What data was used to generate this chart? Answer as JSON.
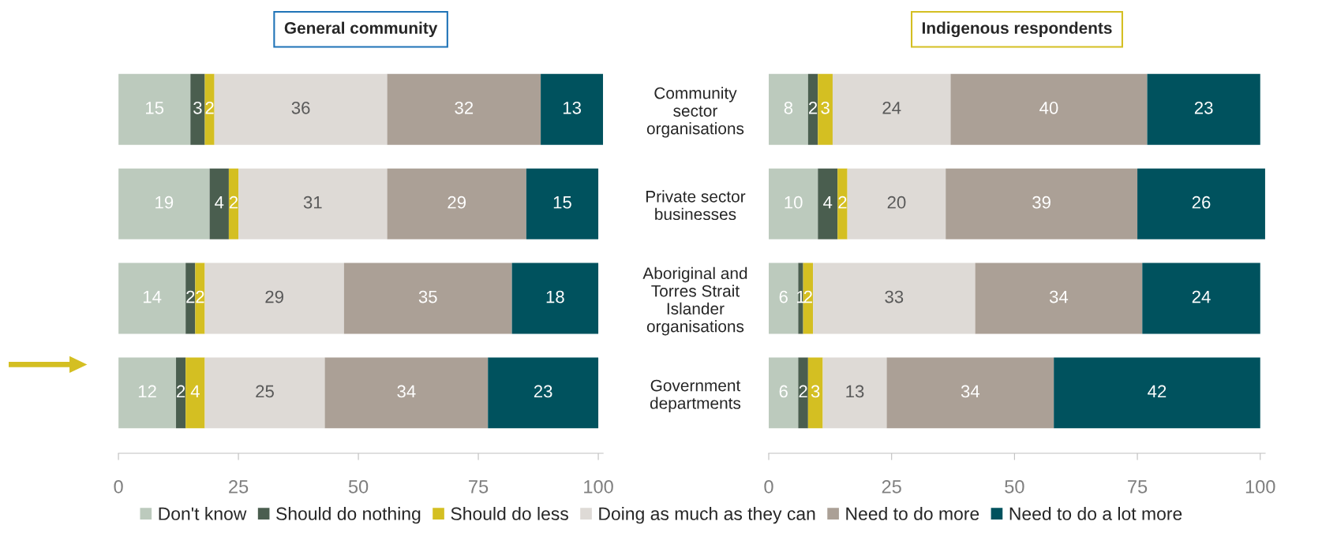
{
  "chart_data": [
    {
      "type": "bar",
      "title": "General community",
      "orientation": "horizontal",
      "stacked": true,
      "data_labels": true,
      "tick_labels": "x",
      "categories": [
        null,
        null,
        null,
        null
      ],
      "xlim": [
        0,
        101
      ],
      "xticks": [
        0,
        25,
        50,
        75,
        100
      ],
      "series": [
        {
          "color": "#bccabd",
          "values": [
            15,
            19,
            14,
            12
          ]
        },
        {
          "color": "#4a5e4f",
          "values": [
            3,
            4,
            2,
            2
          ]
        },
        {
          "color": "#d4bf22",
          "values": [
            2,
            2,
            2,
            4
          ]
        },
        {
          "color": "#dedad6",
          "values": [
            36,
            31,
            29,
            25
          ]
        },
        {
          "color": "#aba096",
          "values": [
            32,
            29,
            35,
            34
          ]
        },
        {
          "color": "#00525e",
          "values": [
            13,
            15,
            18,
            23
          ]
        }
      ]
    },
    {
      "type": "bar",
      "title": "Indigenous respondents",
      "orientation": "horizontal",
      "stacked": true,
      "data_labels": true,
      "legend": "bottom",
      "categories": [
        "Community\nsector\norganisations",
        "Private sector\nbusinesses",
        "Aboriginal and\nTorres Strait\nIslander\norganisations",
        "Government\ndepartments"
      ],
      "xlim": [
        0,
        101
      ],
      "xticks": [
        0,
        25,
        50,
        75,
        100
      ],
      "series": [
        {
          "name": "Don't know",
          "color": "#bccabd",
          "values": [
            8,
            10,
            6,
            6
          ]
        },
        {
          "name": "Should do nothing",
          "color": "#4a5e4f",
          "values": [
            2,
            4,
            1,
            2
          ]
        },
        {
          "name": "Should do less",
          "color": "#d4bf22",
          "values": [
            3,
            2,
            2,
            3
          ]
        },
        {
          "name": "Doing as much as they can",
          "color": "#dedad6",
          "values": [
            24,
            20,
            33,
            13
          ]
        },
        {
          "name": "Need to do more",
          "color": "#aba096",
          "values": [
            40,
            39,
            34,
            34
          ]
        },
        {
          "name": "Need to do a lot more",
          "color": "#00525e",
          "values": [
            23,
            26,
            24,
            42
          ]
        }
      ]
    }
  ]
}
